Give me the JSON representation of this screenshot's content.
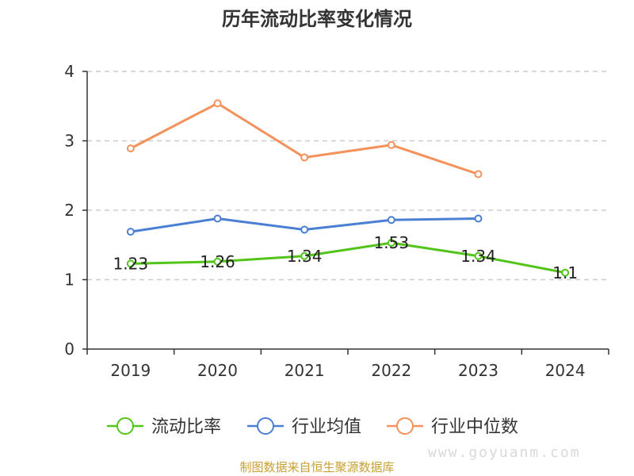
{
  "chart_data": {
    "type": "line",
    "title": "历年流动比率变化情况",
    "categories": [
      "2019",
      "2020",
      "2021",
      "2022",
      "2023",
      "2024"
    ],
    "ylim": [
      0,
      4
    ],
    "yticks": [
      "0",
      "1",
      "2",
      "3",
      "4"
    ],
    "grid": true,
    "legend_position": "bottom",
    "series": [
      {
        "name": "流动比率",
        "color": "#52c41a",
        "values": [
          1.23,
          1.26,
          1.34,
          1.53,
          1.34,
          1.1
        ],
        "labels": [
          "1.23",
          "1.26",
          "1.34",
          "1.53",
          "1.34",
          "1.1"
        ]
      },
      {
        "name": "行业均值",
        "color": "#4a7fd4",
        "values": [
          1.69,
          1.88,
          1.72,
          1.86,
          1.88,
          null
        ]
      },
      {
        "name": "行业中位数",
        "color": "#f5915a",
        "values": [
          2.89,
          3.54,
          2.76,
          2.94,
          2.52,
          null
        ]
      }
    ]
  },
  "source": "制图数据来自恒生聚源数据库",
  "watermark": "www.goyuanm.com"
}
